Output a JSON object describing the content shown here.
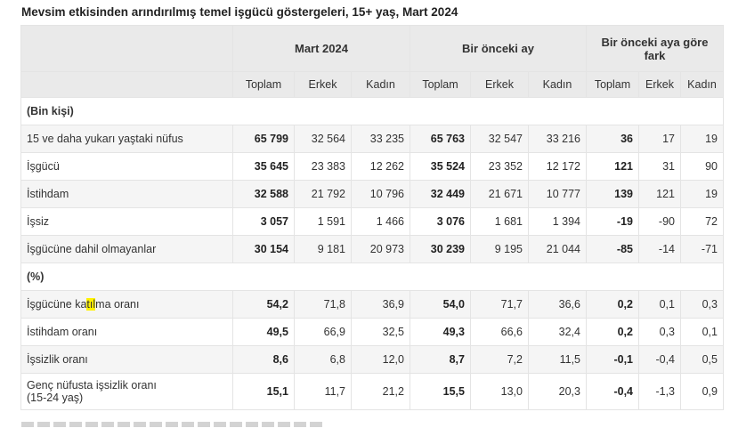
{
  "title": "Mevsim etkisinden arındırılmış temel işgücü göstergeleri, 15+ yaş, Mart 2024",
  "groups": [
    "Mart 2024",
    "Bir önceki ay",
    "Bir önceki aya göre fark"
  ],
  "sub_headers": [
    "Toplam",
    "Erkek",
    "Kadın",
    "Toplam",
    "Erkek",
    "Kadın",
    "Toplam",
    "Erkek",
    "Kadın"
  ],
  "sections": {
    "thousand": "(Bin kişi)",
    "percent": "(%)"
  },
  "rows": [
    {
      "label": "15 ve daha yukarı yaştaki nüfus",
      "v": [
        "65 799",
        "32 564",
        "33 235",
        "65 763",
        "32 547",
        "33 216",
        "36",
        "17",
        "19"
      ]
    },
    {
      "label": "İşgücü",
      "v": [
        "35 645",
        "23 383",
        "12 262",
        "35 524",
        "23 352",
        "12 172",
        "121",
        "31",
        "90"
      ]
    },
    {
      "label": "İstihdam",
      "v": [
        "32 588",
        "21 792",
        "10 796",
        "32 449",
        "21 671",
        "10 777",
        "139",
        "121",
        "19"
      ]
    },
    {
      "label": "İşsiz",
      "v": [
        "3 057",
        "1 591",
        "1 466",
        "3 076",
        "1 681",
        "1 394",
        "-19",
        "-90",
        "72"
      ]
    },
    {
      "label": "İşgücüne dahil olmayanlar",
      "v": [
        "30 154",
        "9 181",
        "20 973",
        "30 239",
        "9 195",
        "21 044",
        "-85",
        "-14",
        "-71"
      ]
    },
    {
      "label_pre": "İşgücüne ka",
      "label_hl": "tıl",
      "label_post": "ma oranı",
      "v": [
        "54,2",
        "71,8",
        "36,9",
        "54,0",
        "71,7",
        "36,6",
        "0,2",
        "0,1",
        "0,3"
      ]
    },
    {
      "label": "İstihdam oranı",
      "v": [
        "49,5",
        "66,9",
        "32,5",
        "49,3",
        "66,6",
        "32,4",
        "0,2",
        "0,3",
        "0,1"
      ]
    },
    {
      "label": "İşsizlik oranı",
      "v": [
        "8,6",
        "6,8",
        "12,0",
        "8,7",
        "7,2",
        "11,5",
        "-0,1",
        "-0,4",
        "0,5"
      ]
    },
    {
      "label": "Genç nüfusta işsizlik oranı",
      "label2": "(15-24 yaş)",
      "v": [
        "15,1",
        "11,7",
        "21,2",
        "15,5",
        "13,0",
        "20,3",
        "-0,4",
        "-1,3",
        "0,9"
      ]
    }
  ]
}
